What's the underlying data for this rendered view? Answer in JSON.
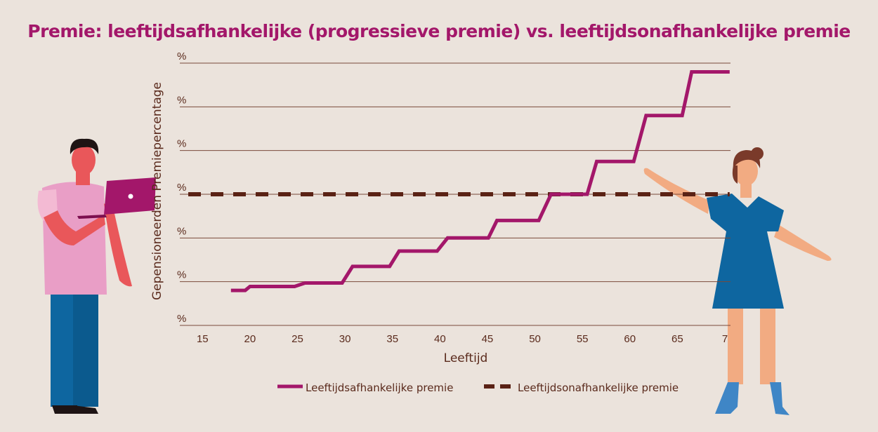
{
  "chart_data": {
    "type": "line",
    "title": "Premie: leeftijdsafhankelijke (progressieve premie) vs. leeftijdsonafhankelijke premie",
    "xlabel": "Leeftijd",
    "ylabel": "Gepensioneerden Premiepercentage",
    "x_ticks": [
      "15",
      "20",
      "25",
      "30",
      "35",
      "40",
      "45",
      "50",
      "55",
      "60",
      "65",
      "7"
    ],
    "y_ticks": [
      "%",
      "%",
      "%",
      "%",
      "%",
      "%",
      "%"
    ],
    "xlim": [
      13.5,
      70
    ],
    "ylim": [
      0,
      6
    ],
    "grid": true,
    "legend_position": "bottom",
    "series": [
      {
        "name": "Leeftijdsafhankelijke premie",
        "color": "#a3176a",
        "style": "solid",
        "points": [
          [
            18,
            0.8
          ],
          [
            19.5,
            0.8
          ],
          [
            20,
            0.89
          ],
          [
            24.7,
            0.89
          ],
          [
            25.8,
            0.97
          ],
          [
            29.7,
            0.97
          ],
          [
            30.8,
            1.35
          ],
          [
            34.7,
            1.35
          ],
          [
            35.7,
            1.7
          ],
          [
            39.7,
            1.7
          ],
          [
            40.8,
            2.0
          ],
          [
            45.1,
            2.0
          ],
          [
            46.0,
            2.4
          ],
          [
            50.4,
            2.4
          ],
          [
            51.7,
            3.0
          ],
          [
            55.5,
            3.0
          ],
          [
            56.5,
            3.75
          ],
          [
            60.4,
            3.75
          ],
          [
            61.7,
            4.8
          ],
          [
            65.5,
            4.8
          ],
          [
            66.5,
            5.8
          ],
          [
            70.5,
            5.8
          ]
        ]
      },
      {
        "name": "Leeftijdsonafhankelijke premie",
        "color": "#5a2215",
        "style": "dashed",
        "points": [
          [
            13.5,
            3.0
          ],
          [
            70.5,
            3.0
          ]
        ]
      }
    ]
  },
  "legend": {
    "solid_label": "Leeftijdsafhankelijke premie",
    "dashed_label": "Leeftijdsonafhankelijke premie"
  },
  "illustrations": {
    "left_figure": "man-with-laptop-illustration",
    "right_figure": "woman-presenting-illustration"
  }
}
